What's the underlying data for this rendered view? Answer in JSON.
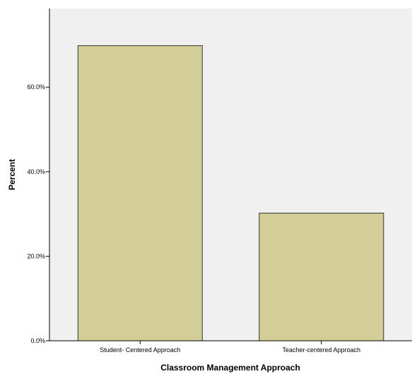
{
  "colors": {
    "background": "#ffffff",
    "plot_background": "#f0f0f0",
    "bar_fill": "#d3ce97",
    "bar_stroke": "#333333",
    "axis": "#000000"
  },
  "chart_data": {
    "type": "bar",
    "title": "",
    "xlabel": "Classroom Management Approach",
    "ylabel": "Percent",
    "categories": [
      "Student- Centered Approach",
      "Teacher-centered Approach"
    ],
    "values": [
      69.8,
      30.2
    ],
    "ylim": [
      0,
      78.6
    ],
    "yticks": [
      0,
      20,
      40,
      60
    ],
    "ytick_labels": [
      "0.0%",
      "20.0%",
      "40.0%",
      "60.0%"
    ],
    "grid": false,
    "legend": "none"
  }
}
